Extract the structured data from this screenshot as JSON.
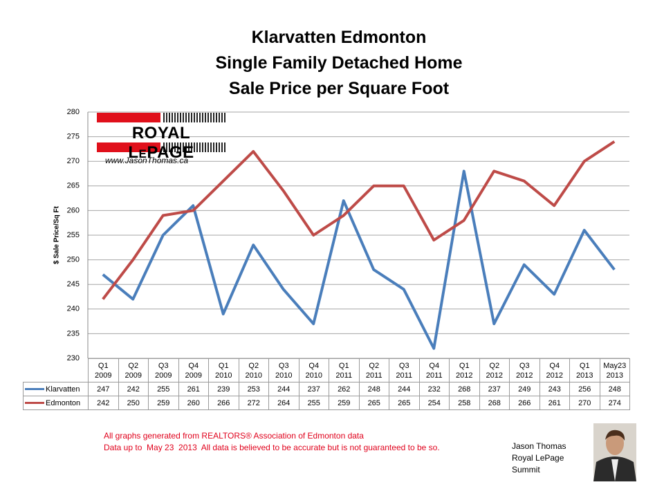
{
  "chart_data": {
    "type": "line",
    "title": "Klarvatten Edmonton\nSingle Family Detached Home\nSale Price per Square Foot",
    "y_label": "$ Sale Price/Sq Ft",
    "categories": [
      "Q1\n2009",
      "Q2\n2009",
      "Q3\n2009",
      "Q4\n2009",
      "Q1\n2010",
      "Q2\n2010",
      "Q3\n2010",
      "Q4\n2010",
      "Q1\n2011",
      "Q2\n2011",
      "Q3\n2011",
      "Q4\n2011",
      "Q1\n2012",
      "Q2\n2012",
      "Q3\n2012",
      "Q4\n2012",
      "Q1\n2013",
      "May23\n2013"
    ],
    "series": [
      {
        "name": "Klarvatten",
        "color": "#4a7ebb",
        "values": [
          247,
          242,
          255,
          261,
          239,
          253,
          244,
          237,
          262,
          248,
          244,
          232,
          268,
          237,
          249,
          243,
          256,
          248
        ]
      },
      {
        "name": "Edmonton",
        "color": "#be4b48",
        "values": [
          242,
          250,
          259,
          260,
          266,
          272,
          264,
          255,
          259,
          265,
          265,
          254,
          258,
          268,
          266,
          261,
          270,
          274
        ]
      }
    ],
    "ylim": [
      230,
      280
    ],
    "yticks": [
      230,
      235,
      240,
      245,
      250,
      255,
      260,
      265,
      270,
      275,
      280
    ],
    "grid": true,
    "logo": {
      "brand": "ROYAL LePAGE",
      "url": "www.JasonThomas.ca"
    },
    "notes": [
      "All graphs generated from REALTORS® Association of Edmonton data",
      "Data up to  May 23  2013  All data is believed to be accurate but is not guaranteed to be so."
    ],
    "signature": "Jason Thomas\nRoyal LePage\nSummit"
  }
}
